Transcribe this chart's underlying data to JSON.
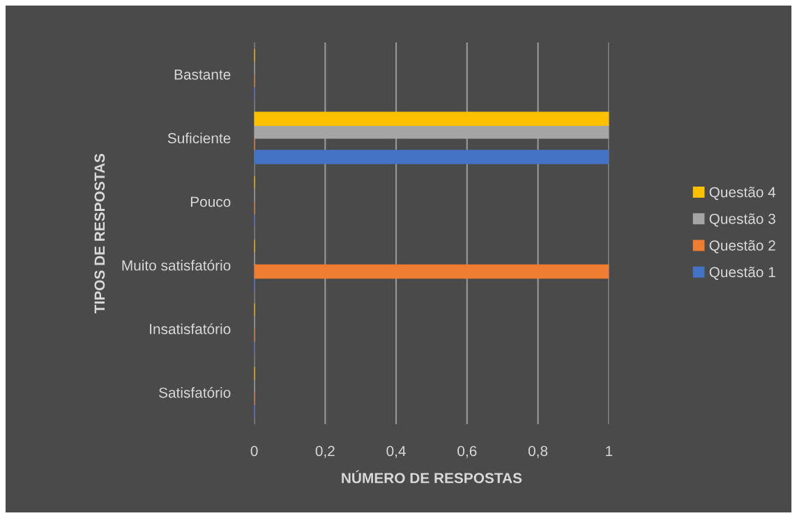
{
  "chart_data": {
    "type": "bar",
    "orientation": "horizontal",
    "xlabel": "NÚMERO DE RESPOSTAS",
    "ylabel": "TIPOS DE RESPOSTAS",
    "categories": [
      "Bastante",
      "Suficiente",
      "Pouco",
      "Muito satisfatório",
      "Insatisfatório",
      "Satisfatório"
    ],
    "series": [
      {
        "name": "Questão 1",
        "color": "#4472c4",
        "values": [
          0,
          1,
          0,
          0,
          0,
          0
        ]
      },
      {
        "name": "Questão 2",
        "color": "#ed7d31",
        "values": [
          0,
          0,
          0,
          1,
          0,
          0
        ]
      },
      {
        "name": "Questão 3",
        "color": "#a5a5a5",
        "values": [
          0,
          1,
          0,
          0,
          0,
          0
        ]
      },
      {
        "name": "Questão 4",
        "color": "#ffc000",
        "values": [
          0,
          1,
          0,
          0,
          0,
          0
        ]
      }
    ],
    "xlim": [
      0,
      1
    ],
    "xticks": [
      0,
      {
        "value": 0.2,
        "label": "0,2"
      },
      {
        "value": 0.4,
        "label": "0,4"
      },
      {
        "value": 0.6,
        "label": "0,6"
      },
      {
        "value": 0.8,
        "label": "0,8"
      },
      1
    ],
    "grid": "x",
    "legend": "right"
  }
}
